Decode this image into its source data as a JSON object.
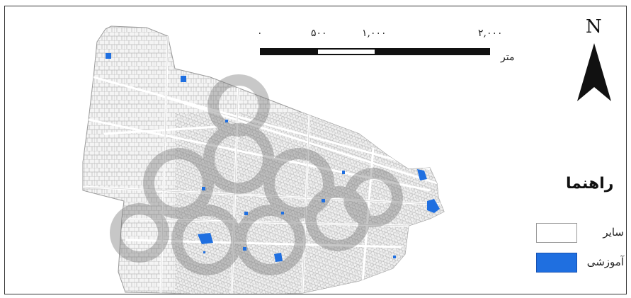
{
  "map": {
    "north_label": "N",
    "scale_bar": {
      "ticks": [
        "۰",
        "۵۰۰",
        "۱,۰۰۰",
        "۲,۰۰۰"
      ],
      "unit": "متر"
    },
    "legend": {
      "title": "راهنما",
      "items": [
        {
          "label": "سایر",
          "color": "#ffffff"
        },
        {
          "label": "آموزشی",
          "color": "#1f6fe0"
        }
      ]
    }
  }
}
